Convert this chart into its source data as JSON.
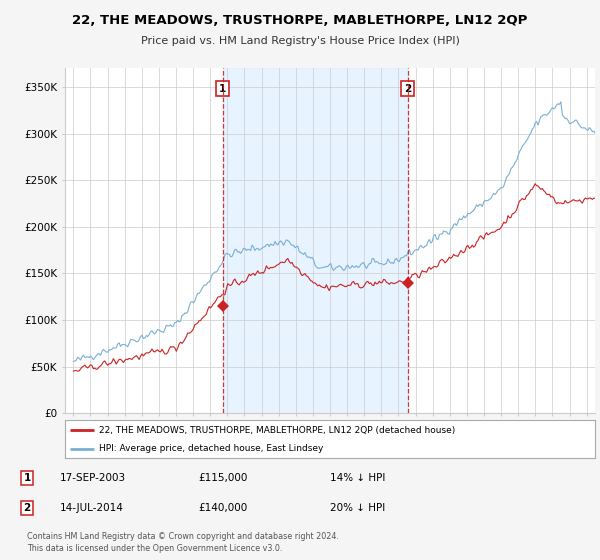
{
  "title": "22, THE MEADOWS, TRUSTHORPE, MABLETHORPE, LN12 2QP",
  "subtitle": "Price paid vs. HM Land Registry's House Price Index (HPI)",
  "hpi_color": "#7bafd4",
  "price_color": "#cc2222",
  "marker_line_color": "#cc2222",
  "shade_color": "#ddeeff",
  "background_color": "#f5f5f5",
  "plot_bg_color": "#ffffff",
  "ylim": [
    0,
    370000
  ],
  "yticks": [
    0,
    50000,
    100000,
    150000,
    200000,
    250000,
    300000,
    350000
  ],
  "ytick_labels": [
    "£0",
    "£50K",
    "£100K",
    "£150K",
    "£200K",
    "£250K",
    "£300K",
    "£350K"
  ],
  "sale1_year": 2003.72,
  "sale1_price": 115000,
  "sale2_year": 2014.54,
  "sale2_price": 140000,
  "legend_line1": "22, THE MEADOWS, TRUSTHORPE, MABLETHORPE, LN12 2QP (detached house)",
  "legend_line2": "HPI: Average price, detached house, East Lindsey",
  "table_row1": [
    "1",
    "17-SEP-2003",
    "£115,000",
    "14% ↓ HPI"
  ],
  "table_row2": [
    "2",
    "14-JUL-2014",
    "£140,000",
    "20% ↓ HPI"
  ],
  "footer": "Contains HM Land Registry data © Crown copyright and database right 2024.\nThis data is licensed under the Open Government Licence v3.0.",
  "xmin": 1994.5,
  "xmax": 2025.5
}
